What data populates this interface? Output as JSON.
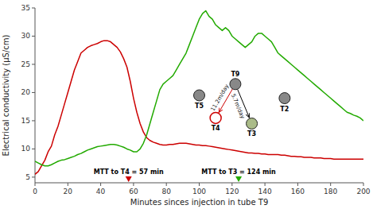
{
  "chart_data": {
    "type": "line",
    "xlabel": "Minutes sinces injection in tube T9",
    "ylabel": "Electrical conductivity (μS/cm)",
    "xlim": [
      0,
      200
    ],
    "ylim": [
      4,
      35
    ],
    "xticks": [
      0,
      20,
      40,
      60,
      80,
      100,
      120,
      140,
      160,
      180,
      200
    ],
    "yticks": [
      5,
      10,
      15,
      20,
      25,
      30,
      35
    ],
    "grid": false,
    "x": [
      0,
      2,
      4,
      6,
      8,
      10,
      12,
      14,
      16,
      18,
      20,
      22,
      24,
      26,
      28,
      30,
      32,
      34,
      36,
      38,
      40,
      42,
      44,
      46,
      48,
      50,
      52,
      54,
      56,
      58,
      60,
      62,
      64,
      66,
      68,
      70,
      72,
      74,
      76,
      78,
      80,
      82,
      84,
      86,
      88,
      90,
      92,
      94,
      96,
      98,
      100,
      102,
      104,
      106,
      108,
      110,
      112,
      114,
      116,
      118,
      120,
      122,
      124,
      126,
      128,
      130,
      132,
      134,
      136,
      138,
      140,
      142,
      144,
      146,
      148,
      150,
      152,
      154,
      156,
      158,
      160,
      162,
      164,
      166,
      168,
      170,
      172,
      174,
      176,
      178,
      180,
      182,
      184,
      186,
      188,
      190,
      192,
      194,
      196,
      198,
      200
    ],
    "series": [
      {
        "color": "#cc0000",
        "values": [
          5.5,
          6.0,
          7.0,
          8.0,
          9.5,
          10.5,
          12.5,
          14.0,
          16.0,
          18.0,
          20.0,
          22.0,
          24.0,
          25.5,
          27.0,
          27.5,
          28.0,
          28.3,
          28.5,
          28.7,
          29.0,
          29.2,
          29.2,
          29.0,
          28.5,
          28.0,
          27.2,
          26.0,
          24.5,
          22.0,
          19.0,
          16.5,
          14.5,
          13.0,
          12.0,
          11.5,
          11.2,
          11.0,
          10.8,
          10.7,
          10.7,
          10.8,
          10.8,
          10.9,
          11.0,
          11.0,
          11.0,
          10.9,
          10.8,
          10.7,
          10.7,
          10.6,
          10.6,
          10.5,
          10.4,
          10.3,
          10.2,
          10.1,
          10.0,
          9.9,
          9.8,
          9.7,
          9.6,
          9.5,
          9.4,
          9.3,
          9.3,
          9.2,
          9.2,
          9.1,
          9.1,
          9.0,
          9.0,
          9.0,
          9.0,
          8.9,
          8.9,
          8.8,
          8.7,
          8.7,
          8.6,
          8.6,
          8.5,
          8.5,
          8.5,
          8.4,
          8.4,
          8.4,
          8.3,
          8.3,
          8.3,
          8.2,
          8.2,
          8.2,
          8.2,
          8.2,
          8.2,
          8.2,
          8.2,
          8.2,
          8.2
        ]
      },
      {
        "color": "#22aa00",
        "values": [
          7.8,
          7.5,
          7.2,
          7.0,
          7.0,
          7.2,
          7.5,
          7.8,
          8.0,
          8.1,
          8.3,
          8.5,
          8.7,
          9.0,
          9.2,
          9.5,
          9.8,
          10.0,
          10.2,
          10.4,
          10.5,
          10.6,
          10.7,
          10.8,
          10.8,
          10.7,
          10.5,
          10.3,
          10.0,
          9.8,
          9.5,
          9.5,
          10.0,
          11.0,
          12.5,
          14.5,
          16.5,
          18.5,
          20.5,
          21.5,
          22.0,
          22.5,
          23.0,
          24.0,
          25.0,
          26.0,
          27.0,
          28.5,
          30.0,
          31.5,
          33.0,
          34.0,
          34.5,
          33.5,
          33.0,
          32.0,
          31.5,
          31.0,
          31.5,
          31.0,
          30.0,
          29.5,
          29.0,
          28.5,
          28.0,
          28.5,
          29.0,
          30.0,
          30.5,
          30.5,
          30.0,
          29.5,
          29.0,
          28.0,
          27.0,
          26.5,
          26.0,
          25.5,
          25.0,
          24.5,
          24.0,
          23.5,
          23.0,
          22.5,
          22.0,
          21.5,
          21.0,
          20.5,
          20.0,
          19.5,
          19.0,
          18.5,
          18.0,
          17.5,
          17.0,
          16.5,
          16.3,
          16.0,
          15.8,
          15.5,
          15.0
        ]
      }
    ],
    "points": [
      {
        "label": "T5",
        "x": 100,
        "y": 19.5,
        "color": "#888888",
        "marker": "circle"
      },
      {
        "label": "T9",
        "x": 122,
        "y": 21.5,
        "color": "#888888",
        "marker": "circle"
      },
      {
        "label": "T4",
        "x": 110,
        "y": 15.5,
        "color": "#cc0000",
        "marker": "open-circle"
      },
      {
        "label": "T3",
        "x": 132,
        "y": 14.5,
        "color": "#aabb88",
        "marker": "circle"
      },
      {
        "label": "T2",
        "x": 152,
        "y": 19.0,
        "color": "#888888",
        "marker": "circle"
      }
    ],
    "arrows": [
      {
        "text": "11.2m/day",
        "x": 122,
        "y": 21.5,
        "x_end": 110,
        "y_end": 15.5,
        "color": "#cc0000"
      },
      {
        "text": "5.7m/day",
        "x": 122,
        "y": 21.5,
        "x_end": 132,
        "y_end": 14.5,
        "color": "#000000"
      }
    ],
    "x_markers": [
      {
        "text": "MTT to T4 = 57 min",
        "x": 57,
        "color": "#cc0000"
      },
      {
        "text": "MTT to T3 = 124 min",
        "x": 124,
        "color": "#22aa00"
      }
    ]
  }
}
